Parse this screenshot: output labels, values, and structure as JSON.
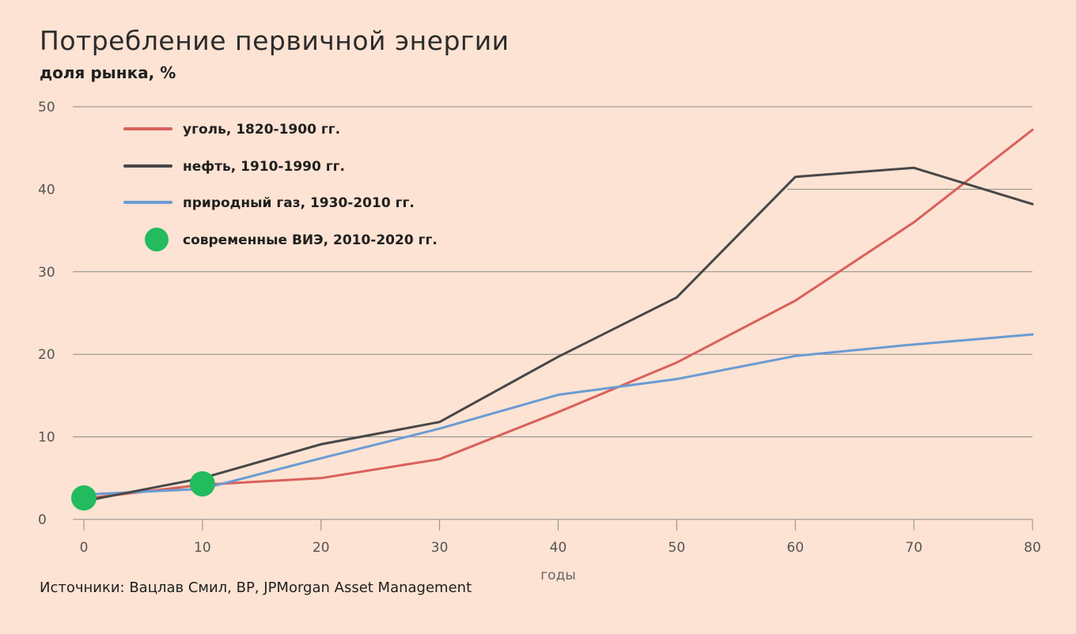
{
  "header": {
    "title": "Потребление первичной энергии",
    "subtitle": "доля рынка, %"
  },
  "footer": {
    "source": "Источники: Вацлав Смил, BP, JPMorgan Asset Management"
  },
  "colors": {
    "background": "#fde3d3",
    "coal": "#d9605c",
    "oil": "#474747",
    "gas": "#6a9bd4",
    "renewables": "#22bb5e",
    "grid": "#8a8a8a"
  },
  "chart_data": {
    "type": "line",
    "xlabel": "годы",
    "ylabel": "",
    "xlim": [
      0,
      80
    ],
    "ylim": [
      0,
      50
    ],
    "x_ticks": [
      0,
      10,
      20,
      30,
      40,
      50,
      60,
      70,
      80
    ],
    "y_ticks": [
      0,
      10,
      20,
      30,
      40,
      50
    ],
    "grid": "horizontal",
    "legend_position": "top-left",
    "series": [
      {
        "name": "уголь, 1820-1900 гг.",
        "key": "coal",
        "style": "line",
        "x": [
          0,
          10,
          20,
          30,
          40,
          50,
          60,
          70,
          80
        ],
        "y": [
          2.5,
          4.2,
          5.0,
          7.3,
          13.0,
          19.0,
          26.5,
          36.0,
          47.2
        ]
      },
      {
        "name": "нефть, 1910-1990 гг.",
        "key": "oil",
        "style": "line",
        "x": [
          0,
          10,
          20,
          30,
          40,
          50,
          60,
          70,
          80
        ],
        "y": [
          2.2,
          5.0,
          9.1,
          11.8,
          19.7,
          26.9,
          41.5,
          42.6,
          38.2
        ]
      },
      {
        "name": "природный газ, 1930-2010 гг.",
        "key": "gas",
        "style": "line",
        "x": [
          0,
          10,
          20,
          30,
          40,
          50,
          60,
          70,
          80
        ],
        "y": [
          3.0,
          3.7,
          7.4,
          11.0,
          15.1,
          17.0,
          19.8,
          21.2,
          22.4
        ]
      },
      {
        "name": "современные ВИЭ, 2010-2020 гг.",
        "key": "renewables",
        "style": "points",
        "x": [
          0,
          10
        ],
        "y": [
          2.6,
          4.3
        ]
      }
    ]
  }
}
